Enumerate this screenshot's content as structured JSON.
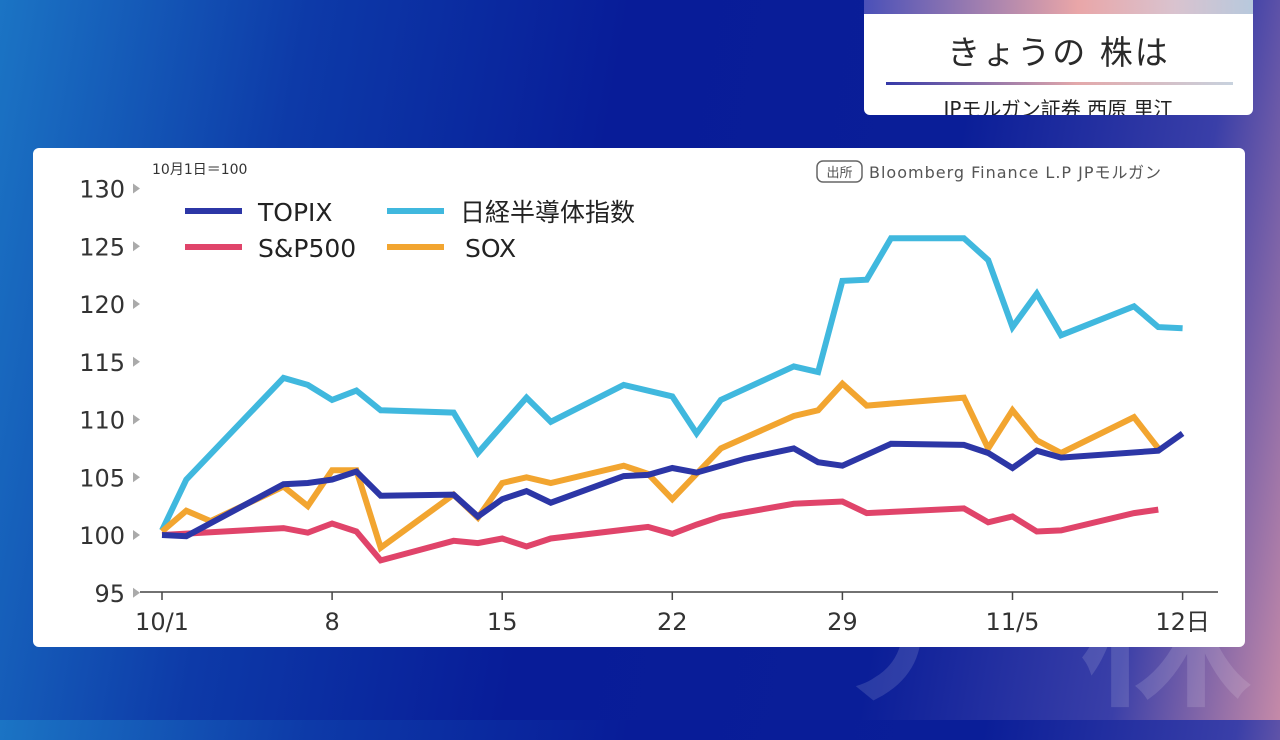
{
  "header": {
    "title": "きょうの 株は",
    "subtitle": "JPモルガン証券 西原 里江"
  },
  "colors": {
    "TOPIX": "#2c36a6",
    "S&P500": "#e0446a",
    "日経半導体指数": "#40b8de",
    "SOX": "#f2a530"
  },
  "chart_data": {
    "type": "line",
    "note": "10月1日＝100",
    "source": "Bloomberg Finance L.P JPモルガン",
    "source_badge": "出所",
    "ylim": [
      95,
      130
    ],
    "yticks": [
      "95",
      "100",
      "105",
      "110",
      "115",
      "120",
      "125",
      "130"
    ],
    "xticks": [
      {
        "date": "10/1",
        "label": "10/1"
      },
      {
        "date": "10/8",
        "label": "8"
      },
      {
        "date": "10/15",
        "label": "15"
      },
      {
        "date": "10/22",
        "label": "22"
      },
      {
        "date": "10/29",
        "label": "29"
      },
      {
        "date": "11/5",
        "label": "11/5"
      },
      {
        "date": "11/12",
        "label": "12日"
      }
    ],
    "xlim": [
      "10/1",
      "11/13"
    ],
    "grid": false,
    "legend": "top-left",
    "series": [
      {
        "name": "TOPIX",
        "points": [
          [
            "10/1",
            100
          ],
          [
            "10/2",
            99.9
          ],
          [
            "10/6",
            104.4
          ],
          [
            "10/7",
            104.5
          ],
          [
            "10/8",
            104.8
          ],
          [
            "10/9",
            105.5
          ],
          [
            "10/10",
            103.4
          ],
          [
            "10/13",
            103.5
          ],
          [
            "10/14",
            101.6
          ],
          [
            "10/15",
            103.1
          ],
          [
            "10/16",
            103.8
          ],
          [
            "10/17",
            102.8
          ],
          [
            "10/20",
            105.1
          ],
          [
            "10/21",
            105.2
          ],
          [
            "10/22",
            105.8
          ],
          [
            "10/23",
            105.4
          ],
          [
            "10/25",
            106.6
          ],
          [
            "10/27",
            107.5
          ],
          [
            "10/28",
            106.3
          ],
          [
            "10/29",
            106.0
          ],
          [
            "10/31",
            107.9
          ],
          [
            "11/3",
            107.8
          ],
          [
            "11/4",
            107.1
          ],
          [
            "11/5",
            105.8
          ],
          [
            "11/6",
            107.3
          ],
          [
            "11/7",
            106.7
          ],
          [
            "11/11",
            107.3
          ],
          [
            "11/12",
            108.8
          ]
        ]
      },
      {
        "name": "S&P500",
        "points": [
          [
            "10/1",
            100
          ],
          [
            "10/6",
            100.6
          ],
          [
            "10/7",
            100.2
          ],
          [
            "10/8",
            101.0
          ],
          [
            "10/9",
            100.3
          ],
          [
            "10/10",
            97.8
          ],
          [
            "10/13",
            99.5
          ],
          [
            "10/14",
            99.3
          ],
          [
            "10/15",
            99.7
          ],
          [
            "10/16",
            99.0
          ],
          [
            "10/17",
            99.7
          ],
          [
            "10/21",
            100.7
          ],
          [
            "10/22",
            100.1
          ],
          [
            "10/23",
            100.9
          ],
          [
            "10/24",
            101.6
          ],
          [
            "10/27",
            102.7
          ],
          [
            "10/29",
            102.9
          ],
          [
            "10/30",
            101.9
          ],
          [
            "11/3",
            102.3
          ],
          [
            "11/4",
            101.1
          ],
          [
            "11/5",
            101.6
          ],
          [
            "11/6",
            100.3
          ],
          [
            "11/7",
            100.4
          ],
          [
            "11/10",
            101.9
          ],
          [
            "11/11",
            102.2
          ]
        ]
      },
      {
        "name": "日経半導体指数",
        "points": [
          [
            "10/1",
            100.4
          ],
          [
            "10/2",
            104.8
          ],
          [
            "10/6",
            113.6
          ],
          [
            "10/7",
            113.0
          ],
          [
            "10/8",
            111.7
          ],
          [
            "10/9",
            112.5
          ],
          [
            "10/10",
            110.8
          ],
          [
            "10/13",
            110.6
          ],
          [
            "10/14",
            107.1
          ],
          [
            "10/16",
            111.9
          ],
          [
            "10/17",
            109.8
          ],
          [
            "10/20",
            113.0
          ],
          [
            "10/22",
            112.0
          ],
          [
            "10/23",
            108.8
          ],
          [
            "10/24",
            111.7
          ],
          [
            "10/27",
            114.6
          ],
          [
            "10/28",
            114.1
          ],
          [
            "10/29",
            122.0
          ],
          [
            "10/30",
            122.1
          ],
          [
            "10/31",
            125.7
          ],
          [
            "11/3",
            125.7
          ],
          [
            "11/4",
            123.8
          ],
          [
            "11/5",
            118.0
          ],
          [
            "11/6",
            120.9
          ],
          [
            "11/7",
            117.3
          ],
          [
            "11/10",
            119.8
          ],
          [
            "11/11",
            118.0
          ],
          [
            "11/12",
            117.9
          ]
        ]
      },
      {
        "name": "SOX",
        "points": [
          [
            "10/1",
            100.3
          ],
          [
            "10/2",
            102.1
          ],
          [
            "10/3",
            101.2
          ],
          [
            "10/6",
            104.2
          ],
          [
            "10/7",
            102.5
          ],
          [
            "10/8",
            105.6
          ],
          [
            "10/9",
            105.6
          ],
          [
            "10/10",
            98.9
          ],
          [
            "10/13",
            103.5
          ],
          [
            "10/14",
            101.5
          ],
          [
            "10/15",
            104.5
          ],
          [
            "10/16",
            105.0
          ],
          [
            "10/17",
            104.5
          ],
          [
            "10/20",
            106.0
          ],
          [
            "10/21",
            105.3
          ],
          [
            "10/22",
            103.1
          ],
          [
            "10/24",
            107.5
          ],
          [
            "10/27",
            110.3
          ],
          [
            "10/28",
            110.8
          ],
          [
            "10/29",
            113.1
          ],
          [
            "10/30",
            111.2
          ],
          [
            "11/3",
            111.9
          ],
          [
            "11/4",
            107.5
          ],
          [
            "11/5",
            110.8
          ],
          [
            "11/6",
            108.2
          ],
          [
            "11/7",
            107.1
          ],
          [
            "11/10",
            110.2
          ],
          [
            "11/11",
            107.5
          ]
        ]
      }
    ]
  }
}
